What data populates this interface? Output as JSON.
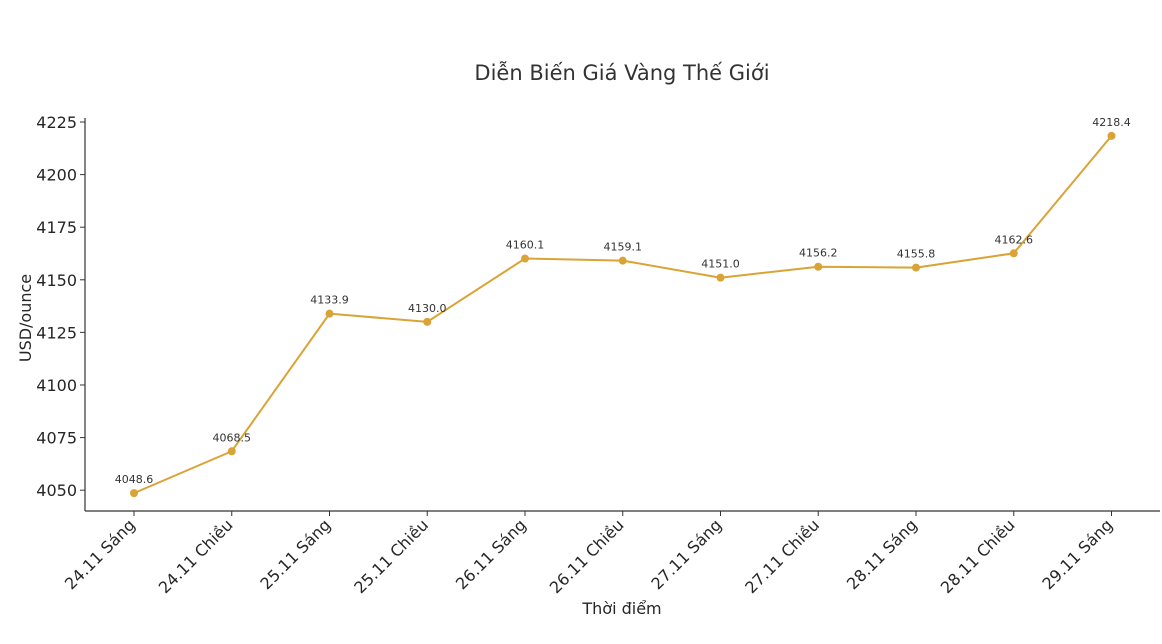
{
  "chart_data": {
    "type": "line",
    "title": "Diễn Biến Giá Vàng Thế Giới",
    "xlabel": "Thời điểm",
    "ylabel": "USD/ounce",
    "categories": [
      "24.11 Sáng",
      "24.11 Chiều",
      "25.11 Sáng",
      "25.11 Chiều",
      "26.11 Sáng",
      "26.11 Chiều",
      "27.11 Sáng",
      "27.11 Chiều",
      "28.11 Sáng",
      "28.11 Chiều",
      "29.11 Sáng"
    ],
    "values": [
      4048.6,
      4068.5,
      4133.9,
      4130.0,
      4160.1,
      4159.1,
      4151.0,
      4156.2,
      4155.8,
      4162.6,
      4218.4
    ],
    "value_labels": [
      "4048.6",
      "4068.5",
      "4133.9",
      "4130.0",
      "4160.1",
      "4159.1",
      "4151.0",
      "4156.2",
      "4155.8",
      "4162.6",
      "4218.4"
    ],
    "yticks": [
      4050,
      4075,
      4100,
      4125,
      4150,
      4175,
      4200,
      4225
    ],
    "ylim": [
      4040.1,
      4226.9
    ],
    "grid": false,
    "line_color": "#DAA335",
    "axis_color": "#333333"
  }
}
